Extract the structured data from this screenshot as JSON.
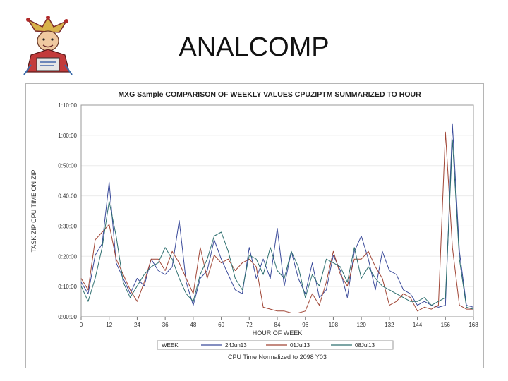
{
  "slide": {
    "title": "ANALCOMP"
  },
  "chart_data": {
    "type": "line",
    "title": "MXG Sample COMPARISON OF WEEKLY VALUES CPUZIPTM SUMMARIZED TO HOUR",
    "xlabel": "HOUR OF WEEK",
    "ylabel": "TASK ZIP CPU TIME ON ZIP",
    "footnote": "CPU Time Normalized to 2098 Y03",
    "legend_title": "WEEK",
    "xlim": [
      0,
      168
    ],
    "ylim": [
      0,
      1.1
    ],
    "x_ticks": [
      "0",
      "12",
      "24",
      "36",
      "48",
      "60",
      "72",
      "84",
      "96",
      "108",
      "120",
      "132",
      "144",
      "156",
      "168"
    ],
    "y_ticks": [
      "0:00:00",
      "0:10:00",
      "0:20:00",
      "0:30:00",
      "0:40:00",
      "0:50:00",
      "1:00:00",
      "1:10:00"
    ],
    "series": [
      {
        "name": "24Jun13",
        "color": "#3a4a9a",
        "x": [
          0,
          3,
          6,
          9,
          12,
          15,
          18,
          21,
          24,
          27,
          30,
          33,
          36,
          39,
          42,
          45,
          48,
          51,
          54,
          57,
          60,
          63,
          66,
          69,
          72,
          75,
          78,
          81,
          84,
          87,
          90,
          93,
          96,
          99,
          102,
          105,
          108,
          111,
          114,
          117,
          120,
          123,
          126,
          129,
          132,
          135,
          138,
          141,
          144,
          147,
          150,
          153,
          156,
          159,
          162,
          165,
          168
        ],
        "y": [
          0.18,
          0.12,
          0.32,
          0.38,
          0.7,
          0.28,
          0.2,
          0.12,
          0.2,
          0.16,
          0.3,
          0.24,
          0.22,
          0.26,
          0.5,
          0.18,
          0.06,
          0.2,
          0.24,
          0.4,
          0.3,
          0.22,
          0.14,
          0.12,
          0.36,
          0.2,
          0.3,
          0.2,
          0.46,
          0.16,
          0.34,
          0.2,
          0.12,
          0.28,
          0.1,
          0.14,
          0.32,
          0.24,
          0.1,
          0.34,
          0.42,
          0.3,
          0.14,
          0.34,
          0.24,
          0.22,
          0.14,
          0.12,
          0.06,
          0.08,
          0.06,
          0.05,
          0.06,
          1.0,
          0.34,
          0.06,
          0.05
        ]
      },
      {
        "name": "01Jul13",
        "color": "#a04535",
        "x": [
          0,
          3,
          6,
          9,
          12,
          15,
          18,
          21,
          24,
          27,
          30,
          33,
          36,
          39,
          42,
          45,
          48,
          51,
          54,
          57,
          60,
          63,
          66,
          69,
          72,
          75,
          78,
          81,
          84,
          87,
          90,
          93,
          96,
          99,
          102,
          105,
          108,
          111,
          114,
          117,
          120,
          123,
          126,
          129,
          132,
          135,
          138,
          141,
          144,
          147,
          150,
          153,
          156,
          159,
          162,
          165,
          168
        ],
        "y": [
          0.2,
          0.14,
          0.4,
          0.44,
          0.48,
          0.3,
          0.22,
          0.14,
          0.08,
          0.18,
          0.3,
          0.3,
          0.24,
          0.34,
          0.28,
          0.2,
          0.12,
          0.36,
          0.2,
          0.32,
          0.28,
          0.3,
          0.24,
          0.28,
          0.3,
          0.26,
          0.05,
          0.04,
          0.03,
          0.03,
          0.02,
          0.02,
          0.03,
          0.12,
          0.06,
          0.18,
          0.34,
          0.22,
          0.16,
          0.3,
          0.3,
          0.34,
          0.26,
          0.2,
          0.06,
          0.08,
          0.12,
          0.1,
          0.03,
          0.05,
          0.04,
          0.06,
          0.96,
          0.36,
          0.06,
          0.04,
          0.04
        ]
      },
      {
        "name": "08Jul13",
        "color": "#2e6f6f",
        "x": [
          0,
          3,
          6,
          9,
          12,
          15,
          18,
          21,
          24,
          27,
          30,
          33,
          36,
          39,
          42,
          45,
          48,
          51,
          54,
          57,
          60,
          63,
          66,
          69,
          72,
          75,
          78,
          81,
          84,
          87,
          90,
          93,
          96,
          99,
          102,
          105,
          108,
          111,
          114,
          117,
          120,
          123,
          126,
          129,
          132,
          135,
          138,
          141,
          144,
          147,
          150,
          153,
          156,
          159,
          162,
          165,
          168
        ],
        "y": [
          0.16,
          0.08,
          0.2,
          0.36,
          0.6,
          0.42,
          0.18,
          0.1,
          0.16,
          0.22,
          0.26,
          0.28,
          0.36,
          0.3,
          0.2,
          0.12,
          0.08,
          0.22,
          0.3,
          0.42,
          0.44,
          0.34,
          0.2,
          0.14,
          0.32,
          0.3,
          0.22,
          0.36,
          0.24,
          0.2,
          0.34,
          0.26,
          0.1,
          0.22,
          0.16,
          0.3,
          0.28,
          0.26,
          0.18,
          0.36,
          0.2,
          0.26,
          0.2,
          0.16,
          0.14,
          0.12,
          0.1,
          0.08,
          0.08,
          0.1,
          0.06,
          0.08,
          0.1,
          0.92,
          0.3,
          0.05,
          0.04
        ]
      }
    ]
  }
}
